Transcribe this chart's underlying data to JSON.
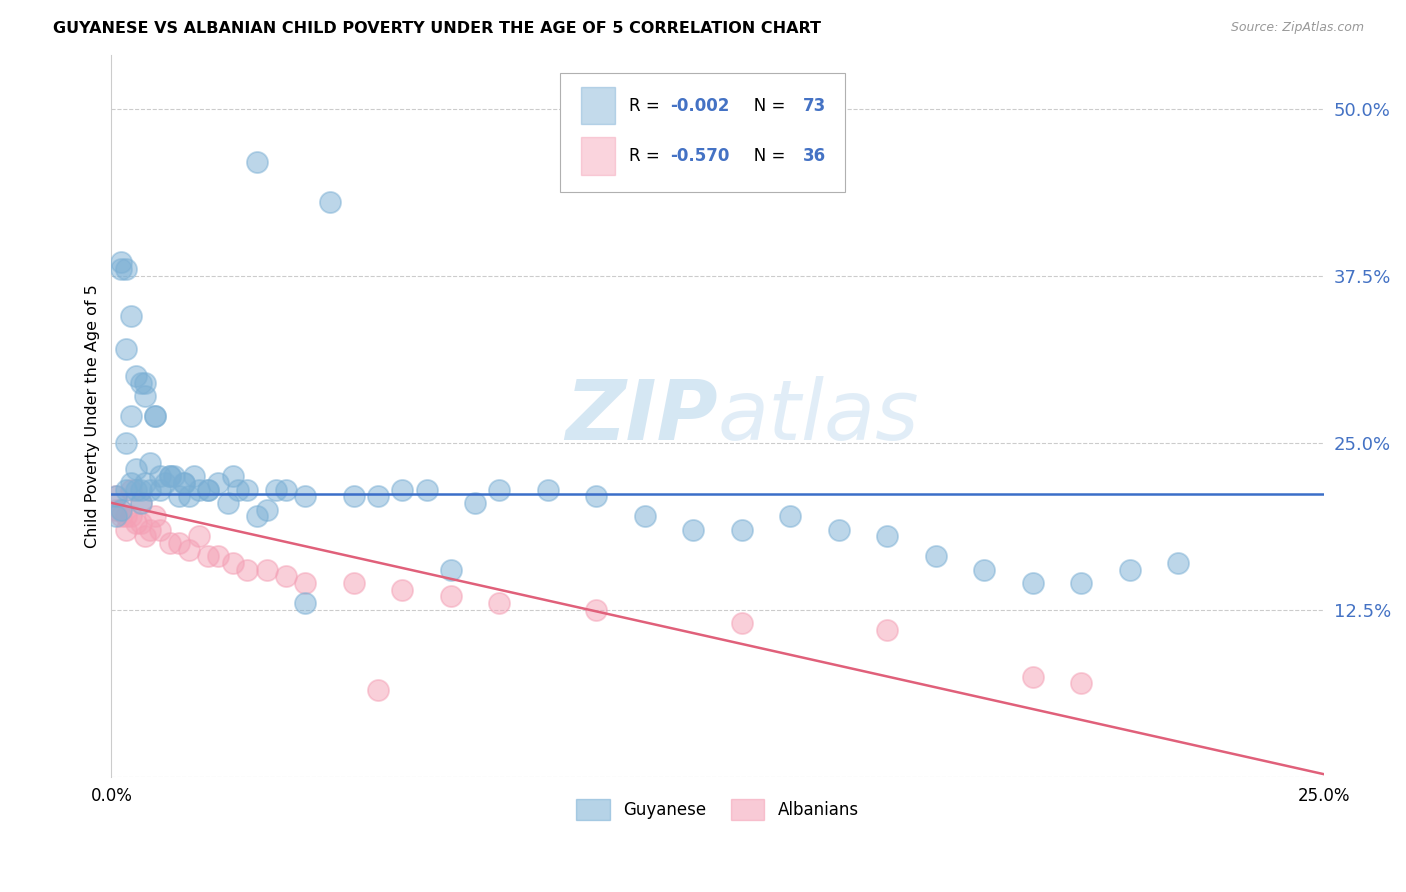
{
  "title": "GUYANESE VS ALBANIAN CHILD POVERTY UNDER THE AGE OF 5 CORRELATION CHART",
  "source": "Source: ZipAtlas.com",
  "ylabel": "Child Poverty Under the Age of 5",
  "xlim": [
    0.0,
    0.25
  ],
  "ylim": [
    0.0,
    0.54
  ],
  "ytick_vals": [
    0.125,
    0.25,
    0.375,
    0.5
  ],
  "ytick_labels": [
    "12.5%",
    "25.0%",
    "37.5%",
    "50.0%"
  ],
  "legend_label1": "Guyanese",
  "legend_label2": "Albanians",
  "legend_r1": "-0.002",
  "legend_n1": "73",
  "legend_r2": "-0.570",
  "legend_n2": "36",
  "blue_color": "#7BAFD4",
  "pink_color": "#F4A0B5",
  "line_blue": "#3B6EC8",
  "line_pink": "#E0607A",
  "tick_color": "#4472C4",
  "grid_color": "#cccccc",
  "guyanese_x": [
    0.001,
    0.001,
    0.002,
    0.002,
    0.003,
    0.003,
    0.003,
    0.004,
    0.004,
    0.005,
    0.005,
    0.006,
    0.006,
    0.007,
    0.007,
    0.008,
    0.008,
    0.009,
    0.01,
    0.01,
    0.011,
    0.012,
    0.013,
    0.014,
    0.015,
    0.016,
    0.017,
    0.018,
    0.02,
    0.022,
    0.024,
    0.026,
    0.028,
    0.03,
    0.032,
    0.034,
    0.036,
    0.04,
    0.045,
    0.05,
    0.055,
    0.06,
    0.065,
    0.07,
    0.075,
    0.08,
    0.09,
    0.1,
    0.11,
    0.12,
    0.13,
    0.14,
    0.15,
    0.16,
    0.17,
    0.18,
    0.19,
    0.2,
    0.21,
    0.22,
    0.002,
    0.003,
    0.004,
    0.005,
    0.006,
    0.007,
    0.009,
    0.012,
    0.015,
    0.02,
    0.025,
    0.03,
    0.04
  ],
  "guyanese_y": [
    0.21,
    0.195,
    0.38,
    0.2,
    0.32,
    0.25,
    0.215,
    0.27,
    0.22,
    0.23,
    0.215,
    0.205,
    0.215,
    0.285,
    0.22,
    0.215,
    0.235,
    0.27,
    0.215,
    0.225,
    0.22,
    0.225,
    0.225,
    0.21,
    0.22,
    0.21,
    0.225,
    0.215,
    0.215,
    0.22,
    0.205,
    0.215,
    0.215,
    0.46,
    0.2,
    0.215,
    0.215,
    0.21,
    0.43,
    0.21,
    0.21,
    0.215,
    0.215,
    0.155,
    0.205,
    0.215,
    0.215,
    0.21,
    0.195,
    0.185,
    0.185,
    0.195,
    0.185,
    0.18,
    0.165,
    0.155,
    0.145,
    0.145,
    0.155,
    0.16,
    0.385,
    0.38,
    0.345,
    0.3,
    0.295,
    0.295,
    0.27,
    0.225,
    0.22,
    0.215,
    0.225,
    0.195,
    0.13
  ],
  "albanian_x": [
    0.001,
    0.001,
    0.002,
    0.002,
    0.003,
    0.003,
    0.004,
    0.004,
    0.005,
    0.006,
    0.006,
    0.007,
    0.008,
    0.009,
    0.01,
    0.012,
    0.014,
    0.016,
    0.018,
    0.02,
    0.022,
    0.025,
    0.028,
    0.032,
    0.036,
    0.04,
    0.05,
    0.06,
    0.07,
    0.08,
    0.1,
    0.13,
    0.16,
    0.19,
    0.055,
    0.2
  ],
  "albanian_y": [
    0.21,
    0.2,
    0.195,
    0.2,
    0.195,
    0.185,
    0.215,
    0.195,
    0.19,
    0.205,
    0.19,
    0.18,
    0.185,
    0.195,
    0.185,
    0.175,
    0.175,
    0.17,
    0.18,
    0.165,
    0.165,
    0.16,
    0.155,
    0.155,
    0.15,
    0.145,
    0.145,
    0.14,
    0.135,
    0.13,
    0.125,
    0.115,
    0.11,
    0.075,
    0.065,
    0.07
  ],
  "blue_line_y0": 0.212,
  "blue_line_y1": 0.212,
  "pink_line_y0": 0.205,
  "pink_line_y1": 0.002
}
